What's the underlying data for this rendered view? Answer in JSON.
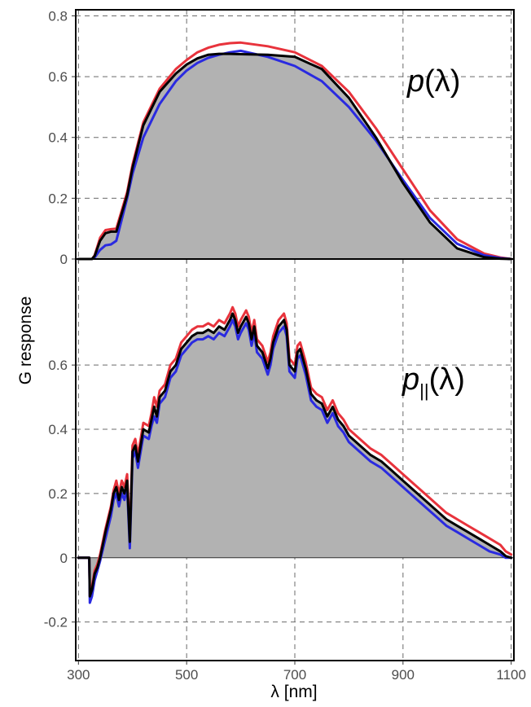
{
  "figure": {
    "y_axis_title": "G response",
    "x_axis_title": "λ [nm]"
  },
  "chart_data": [
    {
      "type": "line",
      "panel_label": "p(λ)",
      "label_main": "p",
      "label_sub": "",
      "label_tail": "(λ)",
      "grid": true,
      "xlim": [
        295,
        1105
      ],
      "ylim": [
        0,
        0.82
      ],
      "x_ticks": [
        300,
        500,
        700,
        900,
        1100
      ],
      "y_ticks": [
        0,
        0.2,
        0.4,
        0.6,
        0.8
      ],
      "y_tick_labels": [
        "0",
        "0.2",
        "0.4",
        "0.6",
        "0.8"
      ],
      "fill_color": "#b2b2b2",
      "series": [
        {
          "color": "#000000",
          "x": [
            300,
            325,
            330,
            340,
            350,
            360,
            370,
            380,
            390,
            400,
            420,
            450,
            480,
            500,
            520,
            540,
            560,
            580,
            600,
            650,
            700,
            750,
            800,
            850,
            900,
            950,
            1000,
            1050,
            1080,
            1100
          ],
          "y": [
            0,
            0,
            0.01,
            0.06,
            0.085,
            0.09,
            0.09,
            0.15,
            0.21,
            0.3,
            0.44,
            0.55,
            0.61,
            0.64,
            0.66,
            0.672,
            0.675,
            0.675,
            0.674,
            0.672,
            0.665,
            0.625,
            0.53,
            0.4,
            0.25,
            0.12,
            0.035,
            0.006,
            0.001,
            0
          ]
        },
        {
          "color": "#e8333c",
          "x": [
            300,
            325,
            330,
            340,
            350,
            360,
            370,
            380,
            390,
            400,
            420,
            450,
            480,
            500,
            520,
            540,
            560,
            580,
            600,
            650,
            700,
            750,
            800,
            850,
            900,
            950,
            1000,
            1050,
            1080,
            1100
          ],
          "y": [
            0,
            0,
            0.012,
            0.07,
            0.095,
            0.098,
            0.1,
            0.16,
            0.22,
            0.31,
            0.45,
            0.56,
            0.625,
            0.655,
            0.68,
            0.695,
            0.705,
            0.71,
            0.712,
            0.7,
            0.68,
            0.635,
            0.55,
            0.43,
            0.295,
            0.16,
            0.065,
            0.018,
            0.005,
            0
          ]
        },
        {
          "color": "#2a2ae0",
          "x": [
            300,
            325,
            330,
            340,
            350,
            360,
            370,
            380,
            390,
            400,
            420,
            450,
            480,
            500,
            520,
            540,
            560,
            580,
            600,
            650,
            700,
            750,
            800,
            850,
            900,
            950,
            1000,
            1050,
            1080,
            1100
          ],
          "y": [
            0,
            0,
            0.005,
            0.03,
            0.045,
            0.048,
            0.06,
            0.13,
            0.2,
            0.28,
            0.4,
            0.51,
            0.585,
            0.62,
            0.645,
            0.662,
            0.672,
            0.68,
            0.685,
            0.665,
            0.635,
            0.585,
            0.5,
            0.39,
            0.26,
            0.135,
            0.05,
            0.012,
            0.003,
            0
          ]
        }
      ]
    },
    {
      "type": "line",
      "panel_label": "p||(λ)",
      "label_main": "p",
      "label_sub": "||",
      "label_tail": "(λ)",
      "grid": true,
      "xlim": [
        295,
        1105
      ],
      "ylim": [
        -0.32,
        0.93
      ],
      "x_ticks": [
        300,
        500,
        700,
        900,
        1100
      ],
      "x_tick_labels": [
        "300",
        "500",
        "700",
        "900",
        "1100"
      ],
      "y_ticks": [
        -0.2,
        0,
        0.2,
        0.4,
        0.6
      ],
      "y_tick_labels": [
        "-0.2",
        "0",
        "0.2",
        "0.4",
        "0.6"
      ],
      "fill_color": "#b2b2b2",
      "series": [
        {
          "color": "#000000",
          "x": [
            300,
            320,
            321,
            325,
            330,
            335,
            340,
            350,
            360,
            365,
            370,
            375,
            380,
            385,
            390,
            395,
            400,
            405,
            410,
            420,
            430,
            435,
            440,
            445,
            450,
            460,
            470,
            480,
            490,
            500,
            510,
            520,
            530,
            540,
            550,
            560,
            570,
            580,
            585,
            590,
            595,
            600,
            610,
            615,
            620,
            625,
            630,
            640,
            650,
            655,
            660,
            670,
            680,
            685,
            690,
            700,
            705,
            710,
            720,
            730,
            740,
            750,
            760,
            770,
            780,
            790,
            800,
            820,
            840,
            860,
            880,
            900,
            920,
            940,
            960,
            980,
            1000,
            1020,
            1040,
            1060,
            1080,
            1090,
            1100
          ],
          "y": [
            0,
            0,
            -0.12,
            -0.1,
            -0.05,
            -0.03,
            0,
            0.08,
            0.15,
            0.2,
            0.22,
            0.18,
            0.22,
            0.2,
            0.24,
            0.05,
            0.33,
            0.35,
            0.3,
            0.4,
            0.39,
            0.43,
            0.47,
            0.44,
            0.5,
            0.52,
            0.58,
            0.6,
            0.65,
            0.67,
            0.69,
            0.7,
            0.7,
            0.71,
            0.7,
            0.72,
            0.71,
            0.74,
            0.76,
            0.74,
            0.7,
            0.72,
            0.75,
            0.73,
            0.68,
            0.72,
            0.66,
            0.64,
            0.59,
            0.62,
            0.67,
            0.72,
            0.74,
            0.71,
            0.6,
            0.58,
            0.64,
            0.65,
            0.59,
            0.51,
            0.49,
            0.48,
            0.44,
            0.47,
            0.43,
            0.41,
            0.38,
            0.35,
            0.32,
            0.3,
            0.27,
            0.24,
            0.21,
            0.18,
            0.15,
            0.12,
            0.1,
            0.08,
            0.06,
            0.04,
            0.02,
            0.005,
            0
          ]
        },
        {
          "color": "#e8333c",
          "x": [
            300,
            320,
            321,
            325,
            330,
            335,
            340,
            350,
            360,
            365,
            370,
            375,
            380,
            385,
            390,
            395,
            400,
            405,
            410,
            420,
            430,
            435,
            440,
            445,
            450,
            460,
            470,
            480,
            490,
            500,
            510,
            520,
            530,
            540,
            550,
            560,
            570,
            580,
            585,
            590,
            595,
            600,
            610,
            615,
            620,
            625,
            630,
            640,
            650,
            655,
            660,
            670,
            680,
            685,
            690,
            700,
            705,
            710,
            720,
            730,
            740,
            750,
            760,
            770,
            780,
            790,
            800,
            820,
            840,
            860,
            880,
            900,
            920,
            940,
            960,
            980,
            1000,
            1020,
            1040,
            1060,
            1080,
            1090,
            1100
          ],
          "y": [
            0,
            0,
            -0.12,
            -0.09,
            -0.04,
            -0.02,
            0.01,
            0.09,
            0.16,
            0.21,
            0.24,
            0.2,
            0.24,
            0.22,
            0.26,
            0.07,
            0.35,
            0.37,
            0.32,
            0.42,
            0.41,
            0.45,
            0.5,
            0.47,
            0.52,
            0.54,
            0.6,
            0.62,
            0.67,
            0.69,
            0.71,
            0.72,
            0.72,
            0.73,
            0.72,
            0.74,
            0.73,
            0.76,
            0.78,
            0.76,
            0.72,
            0.74,
            0.77,
            0.75,
            0.7,
            0.74,
            0.68,
            0.66,
            0.61,
            0.64,
            0.69,
            0.74,
            0.76,
            0.73,
            0.62,
            0.6,
            0.66,
            0.67,
            0.61,
            0.53,
            0.51,
            0.5,
            0.46,
            0.49,
            0.45,
            0.43,
            0.4,
            0.37,
            0.34,
            0.32,
            0.29,
            0.26,
            0.23,
            0.2,
            0.17,
            0.14,
            0.12,
            0.1,
            0.08,
            0.06,
            0.04,
            0.02,
            0.01
          ]
        },
        {
          "color": "#2a2ae0",
          "x": [
            300,
            320,
            321,
            325,
            330,
            335,
            340,
            350,
            360,
            365,
            370,
            375,
            380,
            385,
            390,
            395,
            400,
            405,
            410,
            420,
            430,
            435,
            440,
            445,
            450,
            460,
            470,
            480,
            490,
            500,
            510,
            520,
            530,
            540,
            550,
            560,
            570,
            580,
            585,
            590,
            595,
            600,
            610,
            615,
            620,
            625,
            630,
            640,
            650,
            655,
            660,
            670,
            680,
            685,
            690,
            700,
            705,
            710,
            720,
            730,
            740,
            750,
            760,
            770,
            780,
            790,
            800,
            820,
            840,
            860,
            880,
            900,
            920,
            940,
            960,
            980,
            1000,
            1020,
            1040,
            1060,
            1080,
            1090,
            1100
          ],
          "y": [
            0,
            0,
            -0.14,
            -0.12,
            -0.07,
            -0.04,
            -0.01,
            0.06,
            0.13,
            0.18,
            0.2,
            0.16,
            0.2,
            0.18,
            0.22,
            0.03,
            0.31,
            0.33,
            0.28,
            0.38,
            0.37,
            0.41,
            0.44,
            0.42,
            0.48,
            0.5,
            0.56,
            0.58,
            0.63,
            0.65,
            0.67,
            0.68,
            0.68,
            0.69,
            0.68,
            0.7,
            0.69,
            0.72,
            0.74,
            0.72,
            0.68,
            0.7,
            0.73,
            0.71,
            0.66,
            0.7,
            0.64,
            0.62,
            0.57,
            0.6,
            0.65,
            0.7,
            0.72,
            0.69,
            0.58,
            0.56,
            0.62,
            0.63,
            0.57,
            0.49,
            0.47,
            0.46,
            0.42,
            0.45,
            0.41,
            0.39,
            0.36,
            0.33,
            0.3,
            0.28,
            0.25,
            0.22,
            0.19,
            0.16,
            0.13,
            0.1,
            0.08,
            0.06,
            0.04,
            0.02,
            0.01,
            0,
            0
          ]
        }
      ]
    }
  ]
}
